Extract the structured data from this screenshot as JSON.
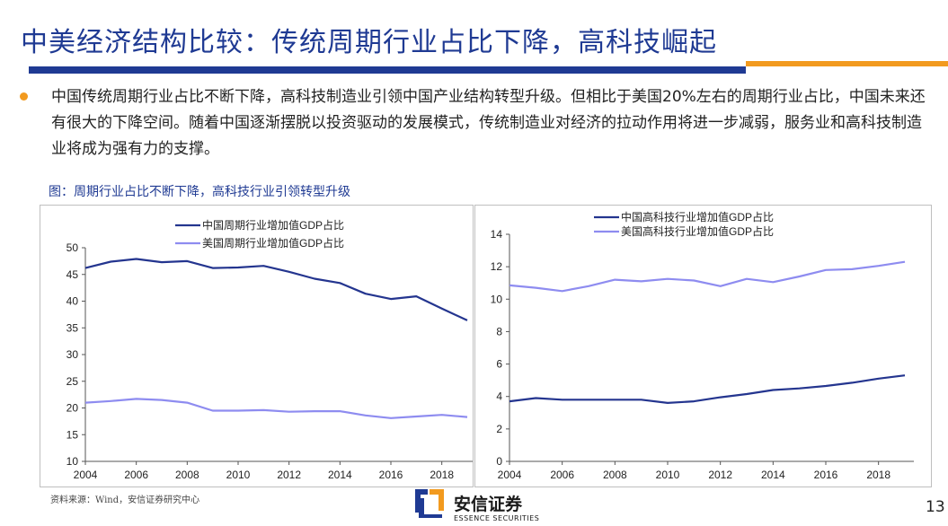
{
  "slide": {
    "title": "中美经济结构比较：传统周期行业占比下降，高科技崛起",
    "bullet": "中国传统周期行业占比不断下降，高科技制造业引领中国产业结构转型升级。但相比于美国20%左右的周期行业占比，中国未来还有很大的下降空间。随着中国逐渐摆脱以投资驱动的发展模式，传统制造业对经济的拉动作用将进一步减弱，服务业和高科技制造业将成为强有力的支撑。",
    "figure_caption": "图：周期行业占比不断下降，高科技行业引领转型升级",
    "source": "资料来源：Wind，安信证券研究中心",
    "logo_cn": "安信证券",
    "logo_en": "ESSENCE SECURITIES",
    "page_number": "13",
    "colors": {
      "accent_blue": "#1f3a93",
      "accent_orange": "#f29a1f",
      "series_dark": "#24358f",
      "series_light": "#8e8cf0"
    }
  },
  "chart_data": [
    {
      "type": "line",
      "x": [
        2004,
        2005,
        2006,
        2007,
        2008,
        2009,
        2010,
        2011,
        2012,
        2013,
        2014,
        2015,
        2016,
        2017,
        2018,
        2019
      ],
      "series": [
        {
          "name": "中国周期行业增加值GDP占比",
          "values": [
            46.2,
            47.4,
            47.9,
            47.3,
            47.5,
            46.2,
            46.3,
            46.6,
            45.5,
            44.2,
            43.4,
            41.4,
            40.4,
            40.9,
            38.6,
            36.4
          ]
        },
        {
          "name": "美国周期行业增加值GDP占比",
          "values": [
            21.0,
            21.3,
            21.7,
            21.5,
            21.0,
            19.5,
            19.5,
            19.6,
            19.3,
            19.4,
            19.4,
            18.6,
            18.1,
            18.4,
            18.7,
            18.3
          ]
        }
      ],
      "xticks": [
        "2004",
        "2006",
        "2008",
        "2010",
        "2012",
        "2014",
        "2016",
        "2018"
      ],
      "yticks": [
        "10",
        "15",
        "20",
        "25",
        "30",
        "35",
        "40",
        "45",
        "50"
      ],
      "ylim": [
        10,
        50
      ],
      "legend": "top-center"
    },
    {
      "type": "line",
      "x": [
        2004,
        2005,
        2006,
        2007,
        2008,
        2009,
        2010,
        2011,
        2012,
        2013,
        2014,
        2015,
        2016,
        2017,
        2018,
        2019
      ],
      "series": [
        {
          "name": "中国高科技行业增加值GDP占比",
          "values": [
            3.7,
            3.9,
            3.8,
            3.8,
            3.8,
            3.8,
            3.6,
            3.7,
            3.95,
            4.15,
            4.4,
            4.5,
            4.65,
            4.85,
            5.1,
            5.3
          ]
        },
        {
          "name": "美国高科技行业增加值GDP占比",
          "values": [
            10.85,
            10.7,
            10.5,
            10.8,
            11.2,
            11.1,
            11.25,
            11.15,
            10.8,
            11.25,
            11.05,
            11.4,
            11.8,
            11.85,
            12.05,
            12.3
          ]
        }
      ],
      "xticks": [
        "2004",
        "2006",
        "2008",
        "2010",
        "2012",
        "2014",
        "2016",
        "2018"
      ],
      "yticks": [
        "0",
        "2",
        "4",
        "6",
        "8",
        "10",
        "12",
        "14"
      ],
      "ylim": [
        0,
        14
      ],
      "legend": "top-center"
    }
  ]
}
